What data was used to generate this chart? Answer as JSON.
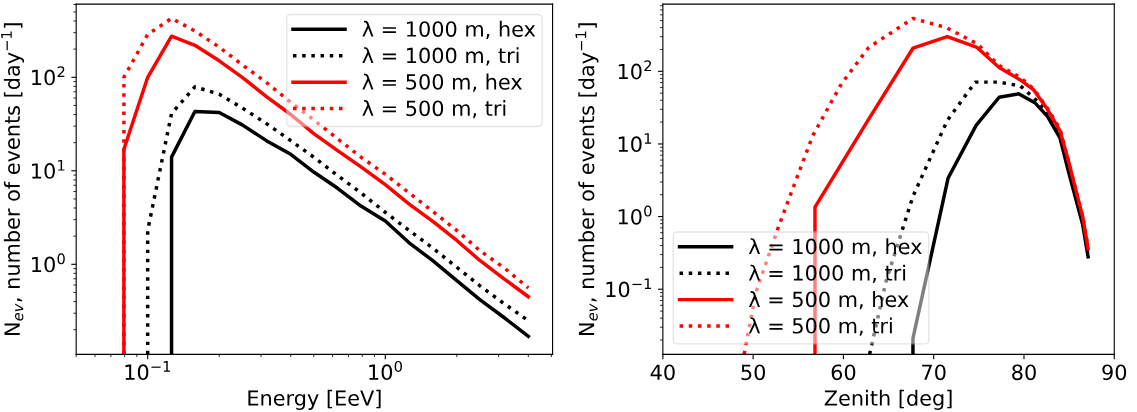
{
  "chart_data": [
    {
      "type": "line",
      "xlabel": "Energy [EeV]",
      "ylabel": "N$_{ev}$, number of events [day$^{−1}$]",
      "log": "xy",
      "xlim": [
        0.05,
        5.06
      ],
      "ylim": [
        0.109,
        606
      ],
      "xticks": [
        {
          "value": 0.1,
          "label": "10$^{−1}$"
        },
        {
          "value": 1,
          "label": "10$^{0}$"
        }
      ],
      "yticks": [
        {
          "value": 1,
          "label": "10$^{0}$"
        },
        {
          "value": 10,
          "label": "10$^{1}$"
        },
        {
          "value": 100,
          "label": "10$^{2}$"
        }
      ],
      "legend": "top right",
      "grid": false,
      "series": [
        {
          "name": "λ = 1000 m, hex",
          "color": "#000000",
          "line_style": "solid",
          "x": [
            0.126,
            0.126,
            0.158,
            0.2,
            0.25,
            0.316,
            0.4,
            0.5,
            0.63,
            0.79,
            1,
            1.26,
            1.58,
            2,
            2.5,
            3.16,
            4
          ],
          "values": [
            0.109,
            14,
            43,
            42,
            31,
            21,
            15,
            9.7,
            6.5,
            4.2,
            2.9,
            1.7,
            1.1,
            0.67,
            0.42,
            0.27,
            0.17
          ]
        },
        {
          "name": "λ = 1000 m, tri",
          "color": "#000000",
          "line_style": "dotted",
          "x": [
            0.1,
            0.1,
            0.126,
            0.158,
            0.2,
            0.25,
            0.316,
            0.4,
            0.5,
            0.63,
            0.79,
            1,
            1.26,
            1.58,
            2,
            2.5,
            3.16,
            4
          ],
          "values": [
            0.109,
            2.3,
            41,
            79,
            66,
            47,
            32,
            21,
            14,
            8.9,
            5.8,
            3.6,
            2.3,
            1.5,
            0.93,
            0.59,
            0.38,
            0.25
          ]
        },
        {
          "name": "λ = 500 m, hex",
          "color": "#ff0000",
          "line_style": "solid",
          "x": [
            0.0794,
            0.0794,
            0.1,
            0.126,
            0.158,
            0.2,
            0.25,
            0.316,
            0.4,
            0.5,
            0.63,
            0.79,
            1,
            1.26,
            1.58,
            2,
            2.5,
            3.16,
            4
          ],
          "values": [
            0.109,
            17,
            100,
            275,
            220,
            150,
            100,
            62,
            40,
            25,
            16.4,
            11,
            7.1,
            4.4,
            2.9,
            1.8,
            1.1,
            0.7,
            0.45
          ]
        },
        {
          "name": "λ = 500 m, tri",
          "color": "#ff0000",
          "line_style": "dotted",
          "x": [
            0.0794,
            0.0794,
            0.1,
            0.126,
            0.158,
            0.2,
            0.25,
            0.316,
            0.4,
            0.5,
            0.63,
            0.79,
            1,
            1.26,
            1.58,
            2,
            2.5,
            3.16,
            4
          ],
          "values": [
            0.109,
            100,
            287,
            427,
            313,
            210,
            136,
            88,
            54,
            35,
            22,
            14,
            9.2,
            5.8,
            3.7,
            2.3,
            1.4,
            0.92,
            0.56
          ]
        }
      ]
    },
    {
      "type": "line",
      "xlabel": "Zenith [deg]",
      "ylabel": "N$_{ev}$, number of events [day$^{−1}$]",
      "log": "y",
      "xlim": [
        40,
        90
      ],
      "ylim": [
        0.0127,
        842
      ],
      "xticks": [
        40,
        50,
        60,
        70,
        80,
        90
      ],
      "yticks": [
        {
          "value": 0.1,
          "label": "10$^{−1}$"
        },
        {
          "value": 1,
          "label": "10$^{0}$"
        },
        {
          "value": 10,
          "label": "10$^{1}$"
        },
        {
          "value": 100,
          "label": "10$^{2}$"
        }
      ],
      "legend": "bottom left",
      "grid": false,
      "series": [
        {
          "name": "λ = 1000 m, hex",
          "color": "#000000",
          "line_style": "solid",
          "x": [
            67.7,
            67.7,
            71.6,
            74.7,
            77.25,
            79.4,
            81.2,
            82.6,
            84,
            84.9,
            86.5,
            87.1
          ],
          "values": [
            0.0127,
            0.021,
            3.4,
            18,
            44,
            49,
            37,
            24,
            12,
            4.3,
            0.78,
            0.28
          ]
        },
        {
          "name": "λ = 1000 m, tri",
          "color": "#000000",
          "line_style": "dotted",
          "x": [
            62.9,
            64.7,
            67.7,
            71.5,
            74.6,
            77.25,
            79.6,
            81.1,
            82.6,
            84,
            84.9,
            86.5,
            87.1
          ],
          "values": [
            0.0127,
            0.126,
            1.9,
            21,
            71,
            71,
            63,
            43,
            28,
            13,
            5.3,
            0.87,
            0.32
          ]
        },
        {
          "name": "λ = 500 m, hex",
          "color": "#ff0000",
          "line_style": "solid",
          "x": [
            56.85,
            56.85,
            62.7,
            67.7,
            71.5,
            74.8,
            77.25,
            79.6,
            81.1,
            82.6,
            84,
            84.9,
            86.5,
            87.1
          ],
          "values": [
            0.0127,
            1.35,
            21,
            208,
            300,
            213,
            113,
            76,
            55,
            30,
            15,
            6,
            1.0,
            0.36
          ]
        },
        {
          "name": "λ = 500 m, tri",
          "color": "#ff0000",
          "line_style": "dotted",
          "x": [
            49.0,
            50.3,
            52.9,
            56.6,
            59.8,
            62.8,
            67.7,
            71.4,
            74.8,
            77.25,
            79.6,
            81.1,
            82.6,
            84,
            84.9,
            86.5,
            87.1
          ],
          "values": [
            0.0127,
            0.09,
            0.78,
            13,
            68,
            213,
            535,
            400,
            240,
            120,
            82,
            57,
            31,
            16,
            6,
            1.0,
            0.39
          ]
        }
      ]
    }
  ]
}
